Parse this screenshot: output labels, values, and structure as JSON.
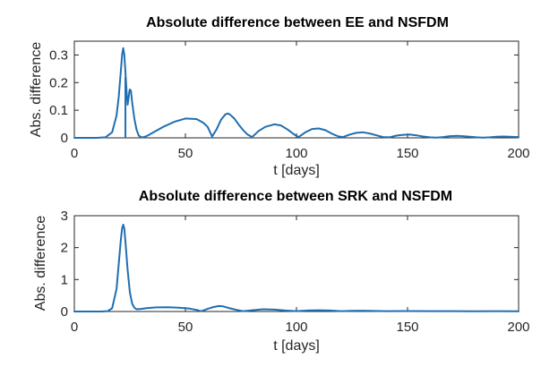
{
  "chart_data": [
    {
      "type": "line",
      "title": "Absolute difference between EE and NSFDM",
      "xlabel": "t [days]",
      "ylabel": "Abs. difference",
      "xlim": [
        0,
        200
      ],
      "ylim": [
        0,
        0.35
      ],
      "xticks": [
        0,
        50,
        100,
        150,
        200
      ],
      "xtick_labels": [
        "0",
        "50",
        "100",
        "150",
        "200"
      ],
      "yticks": [
        0,
        0.1,
        0.2,
        0.3
      ],
      "ytick_labels": [
        "0",
        "0.1",
        "0.2",
        "0.3"
      ],
      "grid": false,
      "color": "#1f6fb2",
      "series": [
        {
          "x": [
            0,
            10,
            14,
            17,
            19,
            20,
            21,
            21.5,
            22,
            22.5,
            23,
            23.5,
            24,
            24.5,
            24.8,
            25,
            25.5,
            26,
            27,
            28,
            29,
            30,
            31,
            33,
            36,
            40,
            45,
            50,
            55,
            58,
            60,
            62,
            64,
            66,
            68,
            69,
            70,
            72,
            74,
            76,
            78,
            80,
            83,
            86,
            90,
            93,
            96,
            99,
            101,
            104,
            107,
            110,
            113,
            116,
            119,
            121,
            124,
            127,
            130,
            133,
            136,
            139,
            142,
            145,
            148,
            151,
            154,
            157,
            160,
            163,
            166,
            169,
            172,
            175,
            178,
            181,
            184,
            187,
            190,
            193,
            196,
            200
          ],
          "y": [
            0,
            0,
            0.002,
            0.02,
            0.08,
            0.15,
            0.25,
            0.3,
            0.325,
            0.3,
            0.24,
            0.17,
            0.12,
            0.15,
            0.17,
            0.175,
            0.17,
            0.13,
            0.07,
            0.03,
            0.008,
            0.003,
            0.002,
            0.008,
            0.022,
            0.04,
            0.058,
            0.07,
            0.068,
            0.055,
            0.04,
            0.005,
            0.03,
            0.065,
            0.085,
            0.088,
            0.085,
            0.07,
            0.048,
            0.028,
            0.012,
            0.003,
            0.025,
            0.04,
            0.049,
            0.045,
            0.03,
            0.012,
            0.003,
            0.02,
            0.032,
            0.034,
            0.028,
            0.015,
            0.005,
            0.003,
            0.012,
            0.018,
            0.02,
            0.016,
            0.009,
            0.003,
            0.002,
            0.008,
            0.011,
            0.012,
            0.009,
            0.005,
            0.002,
            0.001,
            0.003,
            0.006,
            0.007,
            0.006,
            0.004,
            0.002,
            0.001,
            0.002,
            0.004,
            0.005,
            0.004,
            0.003
          ]
        }
      ],
      "vlines": [
        {
          "x": 23,
          "y0": 0,
          "y1": 0.22
        }
      ]
    },
    {
      "type": "line",
      "title": "Absolute difference between SRK and NSFDM",
      "xlabel": "t [days]",
      "ylabel": "Abs. difference",
      "xlim": [
        0,
        200
      ],
      "ylim": [
        0,
        3
      ],
      "xticks": [
        0,
        50,
        100,
        150,
        200
      ],
      "xtick_labels": [
        "0",
        "50",
        "100",
        "150",
        "200"
      ],
      "yticks": [
        0,
        1,
        2,
        3
      ],
      "ytick_labels": [
        "0",
        "1",
        "2",
        "3"
      ],
      "grid": false,
      "color": "#1f6fb2",
      "series": [
        {
          "x": [
            0,
            12,
            15,
            17,
            19,
            20,
            21,
            21.5,
            22,
            22.5,
            23,
            24,
            25,
            26,
            27,
            28,
            30,
            33,
            37,
            42,
            47,
            52,
            55,
            57,
            58,
            60,
            62,
            65,
            67,
            70,
            73,
            76,
            80,
            85,
            90,
            95,
            100,
            105,
            110,
            115,
            120,
            125,
            130,
            140,
            150,
            160,
            170,
            180,
            190,
            200
          ],
          "y": [
            0,
            0,
            0.01,
            0.1,
            0.7,
            1.5,
            2.3,
            2.6,
            2.72,
            2.6,
            2.2,
            1.3,
            0.6,
            0.25,
            0.12,
            0.07,
            0.08,
            0.11,
            0.13,
            0.135,
            0.12,
            0.09,
            0.05,
            0.01,
            0.03,
            0.08,
            0.13,
            0.17,
            0.16,
            0.1,
            0.05,
            0.01,
            0.04,
            0.07,
            0.06,
            0.03,
            0.01,
            0.03,
            0.04,
            0.03,
            0.01,
            0.02,
            0.025,
            0.01,
            0.015,
            0.01,
            0.012,
            0.008,
            0.01,
            0.006
          ]
        }
      ]
    }
  ]
}
